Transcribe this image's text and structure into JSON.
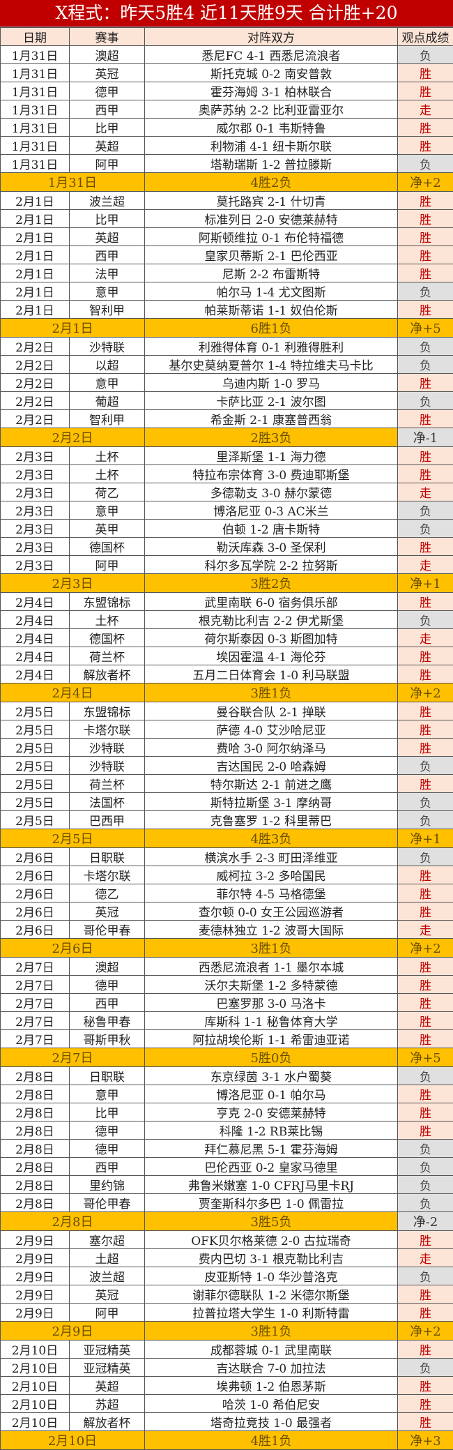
{
  "title": "X程式：昨天5胜4  近11天胜9天  合计胜+20",
  "headers": {
    "date": "日期",
    "league": "赛事",
    "match": "对阵双方",
    "result": "观点成绩"
  },
  "colors": {
    "title_bg": "#C00000",
    "header_bg": "#FCE4D6",
    "summary_bg": "#FFC000",
    "win_text": "#C00000",
    "loss_bg": "#E0E0E0"
  },
  "groups": [
    {
      "rows": [
        [
          "1月31日",
          "澳超",
          "悉尼FC 4-1 西悉尼流浪者",
          "负"
        ],
        [
          "1月31日",
          "英冠",
          "斯托克城 0-2 南安普敦",
          "胜"
        ],
        [
          "1月31日",
          "德甲",
          "霍芬海姆 3-1 柏林联合",
          "胜"
        ],
        [
          "1月31日",
          "西甲",
          "奥萨苏纳 2-2 比利亚雷亚尔",
          "走"
        ],
        [
          "1月31日",
          "比甲",
          "威尔郡 0-1 韦斯特鲁",
          "胜"
        ],
        [
          "1月31日",
          "英超",
          "利物浦 4-1 纽卡斯尔联",
          "胜"
        ],
        [
          "1月31日",
          "阿甲",
          "塔勒瑞斯 1-2 普拉滕斯",
          "负"
        ]
      ],
      "summary": {
        "date": "1月31日",
        "record": "4胜2负",
        "net": "净+2"
      }
    },
    {
      "rows": [
        [
          "2月1日",
          "波兰超",
          "莫托路宾 2-1 什切青",
          "胜"
        ],
        [
          "2月1日",
          "比甲",
          "标准列日 2-0 安德莱赫特",
          "胜"
        ],
        [
          "2月1日",
          "英超",
          "阿斯顿维拉 0-1 布伦特福德",
          "胜"
        ],
        [
          "2月1日",
          "西甲",
          "皇家贝蒂斯 2-1 巴伦西亚",
          "胜"
        ],
        [
          "2月1日",
          "法甲",
          "尼斯 2-2 布雷斯特",
          "胜"
        ],
        [
          "2月1日",
          "意甲",
          "帕尔马 1-4 尤文图斯",
          "负"
        ],
        [
          "2月1日",
          "智利甲",
          "帕莱斯蒂诺 1-1 奴伯伦斯",
          "胜"
        ]
      ],
      "summary": {
        "date": "2月1日",
        "record": "6胜1负",
        "net": "净+5"
      }
    },
    {
      "rows": [
        [
          "2月2日",
          "沙特联",
          "利雅得体育 0-1 利雅得胜利",
          "负"
        ],
        [
          "2月2日",
          "以超",
          "基尔史莫纳夏普尔 1-4 特拉维夫马卡比",
          "负"
        ],
        [
          "2月2日",
          "意甲",
          "乌迪内斯 1-0 罗马",
          "胜"
        ],
        [
          "2月2日",
          "葡超",
          "卡萨比亚 2-1 波尔图",
          "负"
        ],
        [
          "2月2日",
          "智利甲",
          "希金斯 2-1 康塞普西翁",
          "胜"
        ]
      ],
      "summary": {
        "date": "2月2日",
        "record": "2胜3负",
        "net": "净-1"
      }
    },
    {
      "rows": [
        [
          "2月3日",
          "土杯",
          "里泽斯堡 1-1 海力德",
          "胜"
        ],
        [
          "2月3日",
          "土杯",
          "特拉布宗体育 3-0 费迪耶斯堡",
          "胜"
        ],
        [
          "2月3日",
          "荷乙",
          "多德勒支 3-0 赫尔蒙德",
          "走"
        ],
        [
          "2月3日",
          "意甲",
          "博洛尼亚 0-3 AC米兰",
          "负"
        ],
        [
          "2月3日",
          "英甲",
          "伯顿 1-2 唐卡斯特",
          "负"
        ],
        [
          "2月3日",
          "德国杯",
          "勒沃库森 3-0 圣保利",
          "胜"
        ],
        [
          "2月3日",
          "阿甲",
          "科尔多瓦学院 2-2 拉努斯",
          "走"
        ]
      ],
      "summary": {
        "date": "2月3日",
        "record": "3胜2负",
        "net": "净+1"
      }
    },
    {
      "rows": [
        [
          "2月4日",
          "东盟锦标",
          "武里南联 6-0 宿务俱乐部",
          "胜"
        ],
        [
          "2月4日",
          "土杯",
          "根克勒比利吉 2-2 伊尤斯堡",
          "负"
        ],
        [
          "2月4日",
          "德国杯",
          "荷尔斯泰因 0-3 斯图加特",
          "走"
        ],
        [
          "2月4日",
          "荷兰杯",
          "埃因霍温 4-1 海伦芬",
          "胜"
        ],
        [
          "2月4日",
          "解放者杯",
          "五月二日体育会 1-0 利马联盟",
          "胜"
        ]
      ],
      "summary": {
        "date": "2月4日",
        "record": "3胜1负",
        "net": "净+2"
      }
    },
    {
      "rows": [
        [
          "2月5日",
          "东盟锦标",
          "曼谷联合队 2-1 掸联",
          "胜"
        ],
        [
          "2月5日",
          "卡塔尔联",
          "萨德 4-0 艾沙哈尼亚",
          "胜"
        ],
        [
          "2月5日",
          "沙特联",
          "费哈 3-0 阿尔纳泽马",
          "胜"
        ],
        [
          "2月5日",
          "沙特联",
          "吉达国民 2-0 哈森姆",
          "负"
        ],
        [
          "2月5日",
          "荷兰杯",
          "特尔斯达 2-1 前进之鹰",
          "胜"
        ],
        [
          "2月5日",
          "法国杯",
          "斯特拉斯堡 3-1 摩纳哥",
          "负"
        ],
        [
          "2月5日",
          "巴西甲",
          "克鲁塞罗 1-2 科里蒂巴",
          "负"
        ]
      ],
      "summary": {
        "date": "2月5日",
        "record": "4胜3负",
        "net": "净+1"
      }
    },
    {
      "rows": [
        [
          "2月6日",
          "日职联",
          "横滨水手 2-3 町田泽维亚",
          "负"
        ],
        [
          "2月6日",
          "卡塔尔联",
          "威柯拉 3-2 多哈国民",
          "胜"
        ],
        [
          "2月6日",
          "德乙",
          "菲尔特 4-5 马格德堡",
          "胜"
        ],
        [
          "2月6日",
          "英冠",
          "查尔顿 0-0 女王公园巡游者",
          "胜"
        ],
        [
          "2月6日",
          "哥伦甲春",
          "麦德林独立 1-2 波哥大国际",
          "走"
        ]
      ],
      "summary": {
        "date": "2月6日",
        "record": "3胜1负",
        "net": "净+2"
      }
    },
    {
      "rows": [
        [
          "2月7日",
          "澳超",
          "西悉尼流浪者 1-1 墨尔本城",
          "胜"
        ],
        [
          "2月7日",
          "德甲",
          "沃尔夫斯堡 1-2 多特蒙德",
          "胜"
        ],
        [
          "2月7日",
          "西甲",
          "巴塞罗那 3-0 马洛卡",
          "胜"
        ],
        [
          "2月7日",
          "秘鲁甲春",
          "库斯科 1-1 秘鲁体育大学",
          "胜"
        ],
        [
          "2月7日",
          "哥斯甲秋",
          "阿拉胡埃伦斯 1-1 希雷迪亚诺",
          "胜"
        ]
      ],
      "summary": {
        "date": "2月7日",
        "record": "5胜0负",
        "net": "净+5"
      }
    },
    {
      "rows": [
        [
          "2月8日",
          "日职联",
          "东京绿茵 3-1 水户蜀葵",
          "负"
        ],
        [
          "2月8日",
          "意甲",
          "博洛尼亚 0-1 帕尔马",
          "胜"
        ],
        [
          "2月8日",
          "比甲",
          "亨克 2-0 安德莱赫特",
          "胜"
        ],
        [
          "2月8日",
          "德甲",
          "科隆 1-2 RB莱比锡",
          "胜"
        ],
        [
          "2月8日",
          "德甲",
          "拜仁慕尼黑 5-1 霍芬海姆",
          "负"
        ],
        [
          "2月8日",
          "西甲",
          "巴伦西亚 0-2 皇家马德里",
          "负"
        ],
        [
          "2月8日",
          "里约锦",
          "弗鲁米嫩塞 1-0 CFRJ马里卡RJ",
          "负"
        ],
        [
          "2月8日",
          "哥伦甲春",
          "贾奎斯科尔多巴 1-0 佩雷拉",
          "负"
        ]
      ],
      "summary": {
        "date": "2月8日",
        "record": "3胜5负",
        "net": "净-2"
      }
    },
    {
      "rows": [
        [
          "2月9日",
          "塞尔超",
          "OFK贝尔格莱德 2-0 古拉瑞奇",
          "胜"
        ],
        [
          "2月9日",
          "土超",
          "费内巴切 3-1 根克勒比利吉",
          "走"
        ],
        [
          "2月9日",
          "波兰超",
          "皮亚斯特 1-0 华沙普洛克",
          "负"
        ],
        [
          "2月9日",
          "英冠",
          "谢菲尔德联队 1-2 米德尔斯堡",
          "胜"
        ],
        [
          "2月9日",
          "阿甲",
          "拉普拉塔大学生 1-0 利斯特雷",
          "胜"
        ]
      ],
      "summary": {
        "date": "2月9日",
        "record": "3胜1负",
        "net": "净+2"
      }
    },
    {
      "rows": [
        [
          "2月10日",
          "亚冠精英",
          "成都蓉城 0-1 武里南联",
          "胜"
        ],
        [
          "2月10日",
          "亚冠精英",
          "吉达联合 7-0 加拉法",
          "负"
        ],
        [
          "2月10日",
          "英超",
          "埃弗顿 1-2 伯恩茅斯",
          "胜"
        ],
        [
          "2月10日",
          "苏超",
          "哈茨 1-0 希伯尼安",
          "胜"
        ],
        [
          "2月10日",
          "解放者杯",
          "塔奇拉竞技 1-0 最强者",
          "胜"
        ]
      ],
      "summary": {
        "date": "2月10日",
        "record": "4胜1负",
        "net": "净+3"
      }
    }
  ]
}
